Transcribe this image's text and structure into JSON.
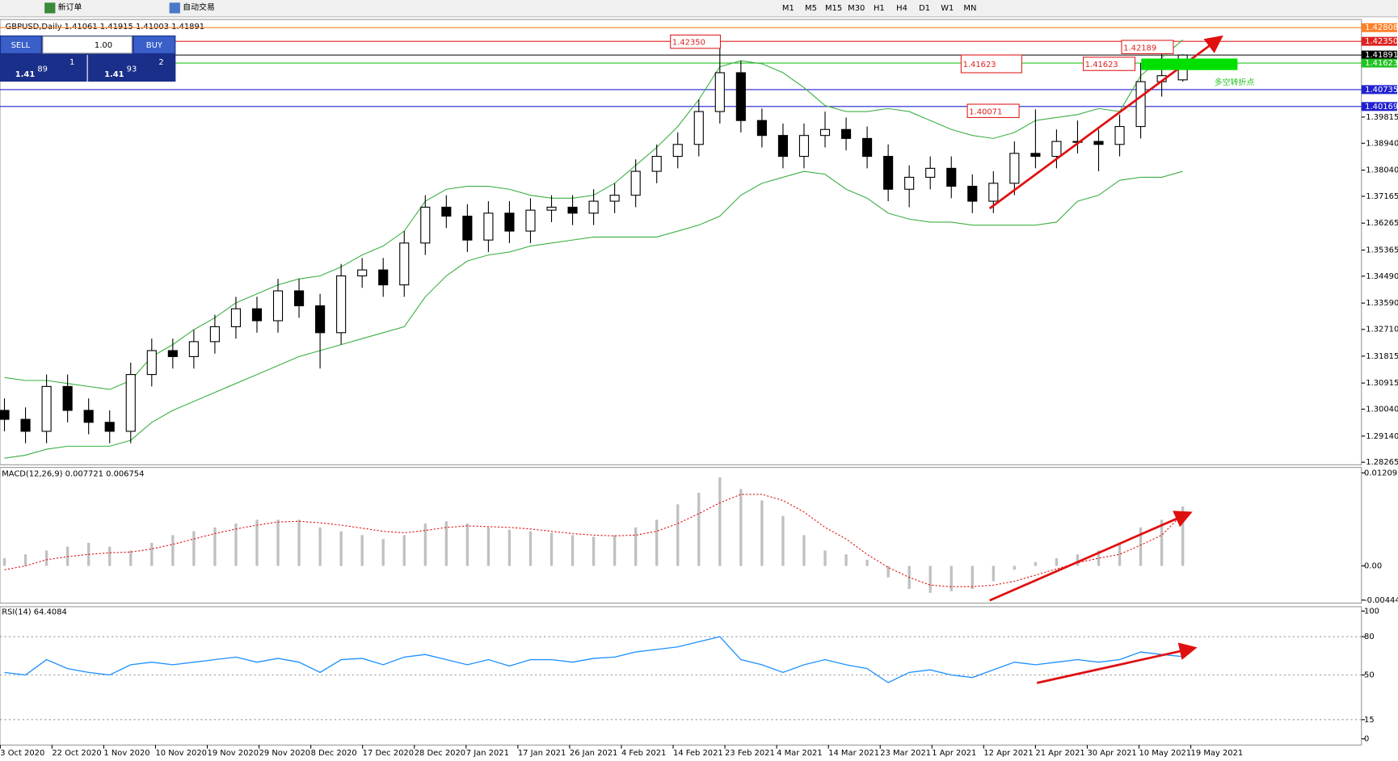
{
  "toolbar": {
    "buttons": [
      "新订单",
      "自动交易"
    ],
    "timeframes": [
      "M1",
      "M5",
      "M15",
      "M30",
      "H1",
      "H4",
      "D1",
      "W1",
      "MN"
    ]
  },
  "trade_panel": {
    "sell": "SELL",
    "lots": "1.00",
    "buy": "BUY",
    "bid": {
      "big": "1.41",
      "pips": "89",
      "point": "1"
    },
    "ask": {
      "big": "1.41",
      "pips": "93",
      "point": "2"
    }
  },
  "chart_data": [
    {
      "type": "candlestick",
      "title": "GBPUSD,Daily  1.41061 1.41915 1.41003 1.41891",
      "ylim": [
        1.2818,
        1.4308
      ],
      "yticks": [
        1.28265,
        {
          "value": 1.2914,
          "label": "1.29140"
        },
        {
          "value": 1.3004,
          "label": "1.30040"
        },
        1.30915,
        1.31815,
        {
          "value": 1.3271,
          "label": "1.32710"
        },
        {
          "value": 1.3359,
          "label": "1.33590"
        },
        {
          "value": 1.3449,
          "label": "1.34490"
        },
        1.35365,
        1.36265,
        1.37165,
        {
          "value": 1.3804,
          "label": "1.38040"
        },
        {
          "value": 1.3894,
          "label": "1.38940"
        },
        1.39815
      ],
      "xticks": [
        {
          "value": -0.2,
          "label": "3 Oct 2020"
        },
        {
          "value": 2.26,
          "label": "22 Oct 2020"
        },
        {
          "value": 4.72,
          "label": "1 Nov 2020"
        },
        {
          "value": 7.18,
          "label": "10 Nov 2020"
        },
        {
          "value": 9.64,
          "label": "19 Nov 2020"
        },
        {
          "value": 12.1,
          "label": "29 Nov 2020"
        },
        {
          "value": 14.56,
          "label": "8 Dec 2020"
        },
        {
          "value": 17.02,
          "label": "17 Dec 2020"
        },
        {
          "value": 19.48,
          "label": "28 Dec 2020"
        },
        {
          "value": 21.94,
          "label": "7 Jan 2021"
        },
        {
          "value": 24.4,
          "label": "17 Jan 2021"
        },
        {
          "value": 26.86,
          "label": "26 Jan 2021"
        },
        {
          "value": 29.32,
          "label": "4 Feb 2021"
        },
        {
          "value": 31.78,
          "label": "14 Feb 2021"
        },
        {
          "value": 34.24,
          "label": "23 Feb 2021"
        },
        {
          "value": 36.7,
          "label": "4 Mar 2021"
        },
        {
          "value": 39.16,
          "label": "14 Mar 2021"
        },
        {
          "value": 41.62,
          "label": "23 Mar 2021"
        },
        {
          "value": 44.08,
          "label": "1 Apr 2021"
        },
        {
          "value": 46.54,
          "label": "12 Apr 2021"
        },
        {
          "value": 49.0,
          "label": "21 Apr 2021"
        },
        {
          "value": 51.46,
          "label": "30 Apr 2021"
        },
        {
          "value": 53.92,
          "label": "10 May 2021"
        },
        {
          "value": 56.38,
          "label": "19 May 2021"
        }
      ],
      "open": [
        1.3,
        1.297,
        1.293,
        1.308,
        1.3,
        1.296,
        1.293,
        1.312,
        1.32,
        1.318,
        1.323,
        1.328,
        1.334,
        1.33,
        1.34,
        1.335,
        1.326,
        1.345,
        1.347,
        1.342,
        1.356,
        1.368,
        1.365,
        1.357,
        1.366,
        1.36,
        1.367,
        1.368,
        1.366,
        1.37,
        1.372,
        1.38,
        1.385,
        1.389,
        1.4,
        1.413,
        1.397,
        1.392,
        1.385,
        1.392,
        1.394,
        1.391,
        1.385,
        1.374,
        1.378,
        1.381,
        1.375,
        1.37,
        1.376,
        1.386,
        1.385,
        1.39,
        1.39,
        1.389,
        1.395,
        1.41,
        1.41061
      ],
      "high": [
        1.304,
        1.301,
        1.312,
        1.312,
        1.304,
        1.3,
        1.316,
        1.324,
        1.324,
        1.327,
        1.332,
        1.338,
        1.338,
        1.344,
        1.344,
        1.339,
        1.349,
        1.351,
        1.351,
        1.36,
        1.372,
        1.372,
        1.369,
        1.37,
        1.37,
        1.371,
        1.372,
        1.372,
        1.374,
        1.376,
        1.384,
        1.389,
        1.393,
        1.404,
        1.4235,
        1.417,
        1.401,
        1.396,
        1.396,
        1.4,
        1.398,
        1.395,
        1.389,
        1.382,
        1.385,
        1.385,
        1.379,
        1.38,
        1.39,
        1.40071,
        1.394,
        1.397,
        1.394,
        1.399,
        1.41623,
        1.42189,
        1.41915
      ],
      "low": [
        1.293,
        1.289,
        1.289,
        1.296,
        1.292,
        1.289,
        1.289,
        1.308,
        1.314,
        1.314,
        1.319,
        1.324,
        1.326,
        1.326,
        1.331,
        1.314,
        1.322,
        1.341,
        1.338,
        1.338,
        1.352,
        1.361,
        1.353,
        1.353,
        1.356,
        1.356,
        1.363,
        1.362,
        1.362,
        1.366,
        1.368,
        1.376,
        1.381,
        1.385,
        1.396,
        1.393,
        1.388,
        1.381,
        1.381,
        1.388,
        1.387,
        1.381,
        1.37,
        1.368,
        1.374,
        1.371,
        1.366,
        1.366,
        1.372,
        1.381,
        1.381,
        1.386,
        1.38,
        1.385,
        1.391,
        1.405,
        1.41003
      ],
      "close": [
        1.297,
        1.293,
        1.308,
        1.3,
        1.296,
        1.293,
        1.312,
        1.32,
        1.318,
        1.323,
        1.328,
        1.334,
        1.33,
        1.34,
        1.335,
        1.326,
        1.345,
        1.347,
        1.342,
        1.356,
        1.368,
        1.365,
        1.357,
        1.366,
        1.36,
        1.367,
        1.368,
        1.366,
        1.37,
        1.372,
        1.38,
        1.385,
        1.389,
        1.4,
        1.413,
        1.397,
        1.392,
        1.385,
        1.392,
        1.394,
        1.391,
        1.385,
        1.374,
        1.378,
        1.381,
        1.375,
        1.37,
        1.376,
        1.386,
        1.385,
        1.39,
        1.39,
        1.389,
        1.395,
        1.41,
        1.412,
        1.41891
      ],
      "upper": [
        1.311,
        1.31,
        1.31,
        1.309,
        1.308,
        1.307,
        1.31,
        1.318,
        1.322,
        1.327,
        1.331,
        1.336,
        1.339,
        1.342,
        1.344,
        1.345,
        1.348,
        1.352,
        1.355,
        1.36,
        1.37,
        1.374,
        1.375,
        1.375,
        1.374,
        1.372,
        1.371,
        1.371,
        1.372,
        1.376,
        1.382,
        1.388,
        1.395,
        1.404,
        1.415,
        1.417,
        1.416,
        1.413,
        1.408,
        1.402,
        1.4,
        1.4,
        1.401,
        1.4,
        1.397,
        1.394,
        1.392,
        1.391,
        1.393,
        1.397,
        1.398,
        1.399,
        1.401,
        1.4,
        1.412,
        1.418,
        1.424
      ],
      "lower": [
        1.284,
        1.285,
        1.287,
        1.288,
        1.288,
        1.288,
        1.29,
        1.296,
        1.3,
        1.303,
        1.306,
        1.309,
        1.312,
        1.315,
        1.318,
        1.32,
        1.322,
        1.324,
        1.326,
        1.328,
        1.338,
        1.345,
        1.35,
        1.352,
        1.353,
        1.355,
        1.356,
        1.357,
        1.358,
        1.358,
        1.358,
        1.358,
        1.36,
        1.362,
        1.365,
        1.372,
        1.376,
        1.378,
        1.38,
        1.379,
        1.374,
        1.371,
        1.366,
        1.364,
        1.363,
        1.363,
        1.362,
        1.362,
        1.362,
        1.362,
        1.363,
        1.37,
        1.372,
        1.377,
        1.378,
        1.378,
        1.38
      ],
      "band_color": "#3cb043",
      "up_color": "#ffffff",
      "down_color": "#000000",
      "levels": [
        {
          "value": 1.42808,
          "color": "#ff7f27"
        },
        {
          "value": 1.4235,
          "label": "1.42350",
          "color": "#e02020"
        },
        {
          "value": 1.41891,
          "color": "#000000"
        },
        {
          "value": 1.41623,
          "color": "#22c322"
        },
        {
          "value": 1.40735,
          "color": "#2020d0"
        },
        {
          "value": 1.40169,
          "color": "#2020d0"
        }
      ],
      "annotations": [
        "1.42350",
        "1.41623",
        "1.42189",
        "1.41623",
        "1.40071",
        "多空转折点"
      ]
    },
    {
      "type": "macd",
      "title": "MACD(12,26,9) 0.007721 0.006754",
      "ylim": [
        -0.00484,
        0.0128
      ],
      "yticks": [
        0.01209,
        {
          "value": 0,
          "label": "0.00"
        },
        -0.004446
      ],
      "histogram": [
        0.001,
        0.0015,
        0.002,
        0.0025,
        0.003,
        0.0025,
        0.002,
        0.003,
        0.004,
        0.0045,
        0.005,
        0.0055,
        0.006,
        0.006,
        0.006,
        0.005,
        0.0045,
        0.004,
        0.0035,
        0.004,
        0.0055,
        0.0058,
        0.0055,
        0.005,
        0.0047,
        0.0045,
        0.0043,
        0.004,
        0.0038,
        0.004,
        0.005,
        0.006,
        0.008,
        0.0095,
        0.0115,
        0.01,
        0.0085,
        0.0065,
        0.004,
        0.002,
        0.0015,
        0.0008,
        -0.0015,
        -0.003,
        -0.0035,
        -0.0033,
        -0.003,
        -0.002,
        -0.0005,
        0.0005,
        0.001,
        0.0015,
        0.002,
        0.003,
        0.005,
        0.006,
        0.007721
      ],
      "signal": [
        -0.0005,
        0.0,
        0.0008,
        0.0012,
        0.0015,
        0.0017,
        0.0018,
        0.0022,
        0.0028,
        0.0035,
        0.0042,
        0.0048,
        0.0053,
        0.0057,
        0.0058,
        0.0056,
        0.0053,
        0.0049,
        0.0045,
        0.0043,
        0.0046,
        0.005,
        0.0052,
        0.0051,
        0.005,
        0.0048,
        0.0045,
        0.0042,
        0.004,
        0.0039,
        0.004,
        0.0045,
        0.0055,
        0.0068,
        0.0082,
        0.0093,
        0.0093,
        0.0085,
        0.007,
        0.005,
        0.0035,
        0.0015,
        -0.0002,
        -0.0015,
        -0.0025,
        -0.0027,
        -0.0027,
        -0.0025,
        -0.002,
        -0.0012,
        -0.0004,
        0.0004,
        0.001,
        0.0015,
        0.0027,
        0.004,
        0.006754
      ],
      "histogram_color": "#c0c0c0",
      "signal_color": "#e01010"
    },
    {
      "type": "line",
      "title": "RSI(14) 64.4084",
      "ylim": [
        0,
        100
      ],
      "yticks": [
        100,
        80,
        50,
        15,
        0
      ],
      "color": "#1e90ff",
      "values": [
        52,
        50,
        62,
        55,
        52,
        50,
        58,
        60,
        58,
        60,
        62,
        64,
        60,
        63,
        60,
        52,
        62,
        63,
        58,
        64,
        66,
        62,
        58,
        62,
        57,
        62,
        62,
        60,
        63,
        64,
        68,
        70,
        72,
        76,
        80,
        62,
        58,
        52,
        58,
        62,
        58,
        55,
        44,
        52,
        54,
        50,
        48,
        54,
        60,
        58,
        60,
        62,
        60,
        62,
        68,
        66,
        64.4084
      ]
    }
  ]
}
